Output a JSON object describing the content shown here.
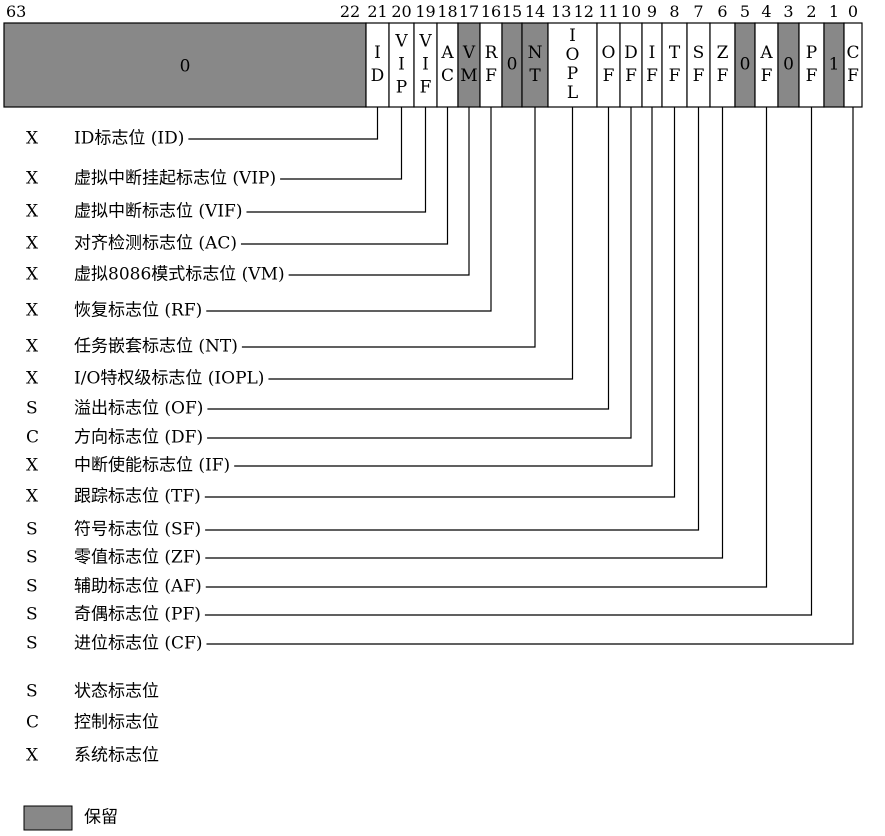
{
  "register": {
    "bit_high_label": "63",
    "bit_low_label": "22",
    "reserved_upper_value": "0",
    "fields": [
      {
        "bit": "21",
        "abbr": "ID",
        "reserved": false
      },
      {
        "bit": "20",
        "abbr": "VIP",
        "reserved": false
      },
      {
        "bit": "19",
        "abbr": "VIF",
        "reserved": false
      },
      {
        "bit": "18",
        "abbr": "AC",
        "reserved": false
      },
      {
        "bit": "17",
        "abbr": "VM",
        "reserved": true
      },
      {
        "bit": "16",
        "abbr": "RF",
        "reserved": false
      },
      {
        "bit": "15",
        "abbr": "0",
        "reserved": true
      },
      {
        "bit": "14",
        "abbr": "NT",
        "reserved": true
      },
      {
        "bit": "13 12",
        "abbr": "IOPL",
        "reserved": false
      },
      {
        "bit": "11",
        "abbr": "OF",
        "reserved": false
      },
      {
        "bit": "10",
        "abbr": "DF",
        "reserved": false
      },
      {
        "bit": "9",
        "abbr": "IF",
        "reserved": false
      },
      {
        "bit": "8",
        "abbr": "TF",
        "reserved": false
      },
      {
        "bit": "7",
        "abbr": "SF",
        "reserved": false
      },
      {
        "bit": "6",
        "abbr": "ZF",
        "reserved": false
      },
      {
        "bit": "5",
        "abbr": "0",
        "reserved": true
      },
      {
        "bit": "4",
        "abbr": "AF",
        "reserved": false
      },
      {
        "bit": "3",
        "abbr": "0",
        "reserved": true
      },
      {
        "bit": "2",
        "abbr": "PF",
        "reserved": false
      },
      {
        "bit": "1",
        "abbr": "1",
        "reserved": true
      },
      {
        "bit": "0",
        "abbr": "CF",
        "reserved": false
      }
    ]
  },
  "flags": [
    {
      "type": "X",
      "label": "ID标志位 (ID)",
      "field_abbr": "ID"
    },
    {
      "type": "X",
      "label": "虚拟中断挂起标志位 (VIP)",
      "field_abbr": "VIP"
    },
    {
      "type": "X",
      "label": "虚拟中断标志位 (VIF)",
      "field_abbr": "VIF"
    },
    {
      "type": "X",
      "label": "对齐检测标志位 (AC)",
      "field_abbr": "AC"
    },
    {
      "type": "X",
      "label": "虚拟8086模式标志位 (VM)",
      "field_abbr": "VM"
    },
    {
      "type": "X",
      "label": "恢复标志位 (RF)",
      "field_abbr": "RF"
    },
    {
      "type": "X",
      "label": "任务嵌套标志位 (NT)",
      "field_abbr": "NT"
    },
    {
      "type": "X",
      "label": "I/O特权级标志位 (IOPL)",
      "field_abbr": "IOPL"
    },
    {
      "type": "S",
      "label": "溢出标志位 (OF)",
      "field_abbr": "OF"
    },
    {
      "type": "C",
      "label": "方向标志位 (DF)",
      "field_abbr": "DF"
    },
    {
      "type": "X",
      "label": "中断使能标志位 (IF)",
      "field_abbr": "IF"
    },
    {
      "type": "X",
      "label": "跟踪标志位 (TF)",
      "field_abbr": "TF"
    },
    {
      "type": "S",
      "label": "符号标志位 (SF)",
      "field_abbr": "SF"
    },
    {
      "type": "S",
      "label": "零值标志位 (ZF)",
      "field_abbr": "ZF"
    },
    {
      "type": "S",
      "label": "辅助标志位 (AF)",
      "field_abbr": "AF"
    },
    {
      "type": "S",
      "label": "奇偶标志位 (PF)",
      "field_abbr": "PF"
    },
    {
      "type": "S",
      "label": "进位标志位 (CF)",
      "field_abbr": "CF"
    }
  ],
  "legend": [
    {
      "key": "S",
      "label": "状态标志位"
    },
    {
      "key": "C",
      "label": "控制标志位"
    },
    {
      "key": "X",
      "label": "系统标志位"
    }
  ],
  "reserved_legend_label": "保留",
  "colors": {
    "reserved": "#888888",
    "line": "#000000",
    "background": "#ffffff"
  }
}
